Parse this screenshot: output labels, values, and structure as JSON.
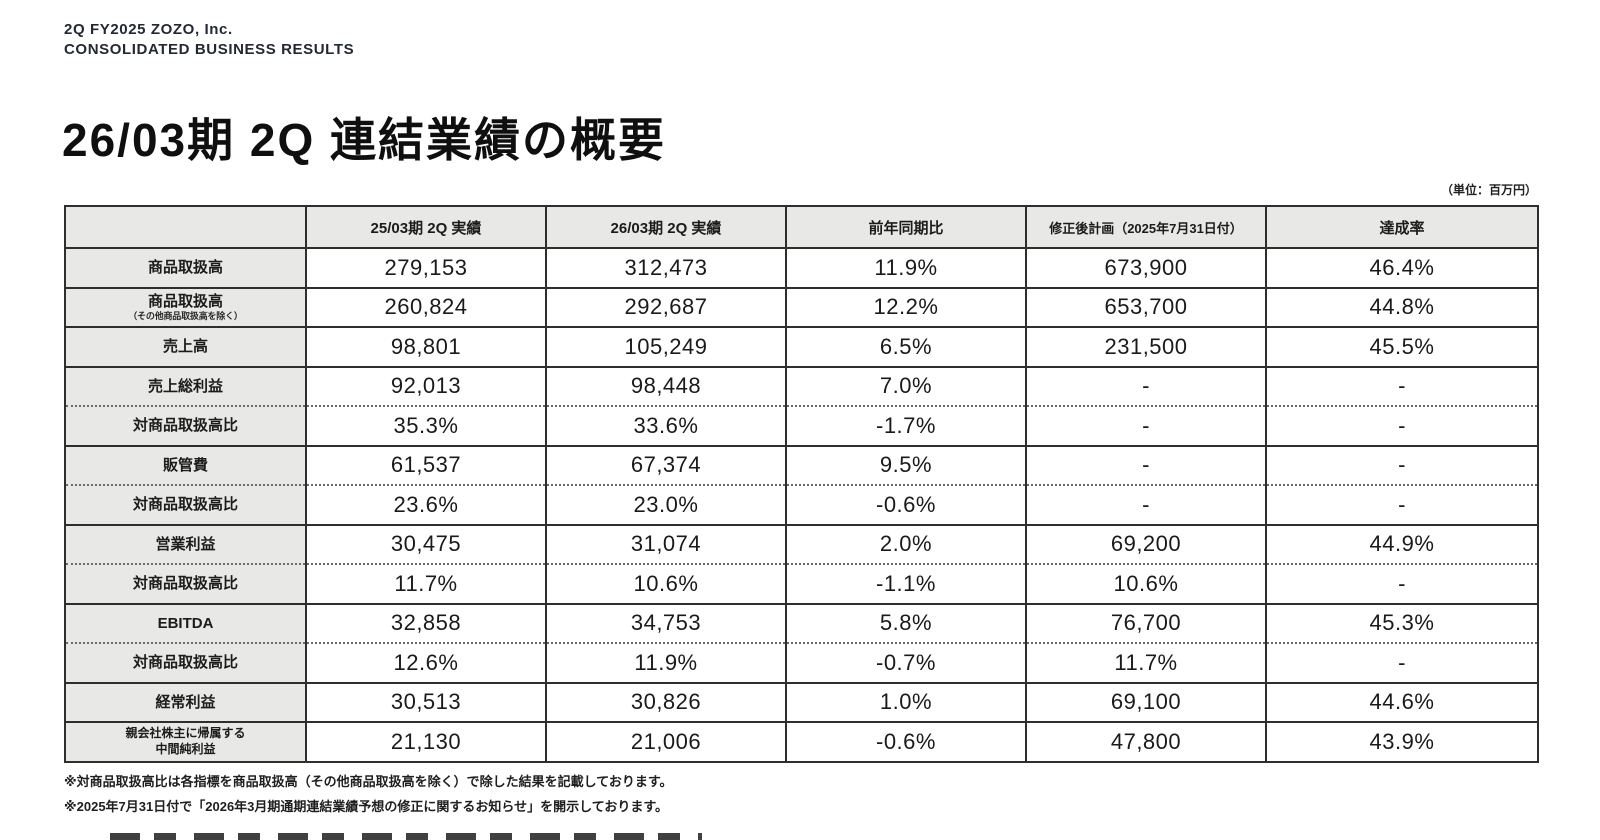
{
  "header": {
    "line1": "2Q FY2025 ZOZO, Inc.",
    "line2": "CONSOLIDATED BUSINESS RESULTS"
  },
  "title": "26/03期 2Q 連結業績の概要",
  "unit_note": "（単位：百万円）",
  "table": {
    "columns": [
      "",
      "25/03期 2Q 実績",
      "26/03期 2Q 実績",
      "前年同期比",
      "修正後計画（2025年7月31日付）",
      "達成率"
    ],
    "rows": [
      {
        "label": "商品取扱高",
        "divider": "solid",
        "values": [
          "279,153",
          "312,473",
          "11.9%",
          "673,900",
          "46.4%"
        ]
      },
      {
        "label": "商品取扱高",
        "sub": "（その他商品取扱高を除く）",
        "divider": "solid",
        "values": [
          "260,824",
          "292,687",
          "12.2%",
          "653,700",
          "44.8%"
        ]
      },
      {
        "label": "売上高",
        "divider": "solid",
        "values": [
          "98,801",
          "105,249",
          "6.5%",
          "231,500",
          "45.5%"
        ]
      },
      {
        "label": "売上総利益",
        "divider": "solid",
        "values": [
          "92,013",
          "98,448",
          "7.0%",
          "-",
          "-"
        ]
      },
      {
        "label": "対商品取扱高比",
        "divider": "dashed",
        "values": [
          "35.3%",
          "33.6%",
          "-1.7%",
          "-",
          "-"
        ]
      },
      {
        "label": "販管費",
        "divider": "solid",
        "values": [
          "61,537",
          "67,374",
          "9.5%",
          "-",
          "-"
        ]
      },
      {
        "label": "対商品取扱高比",
        "divider": "dashed",
        "values": [
          "23.6%",
          "23.0%",
          "-0.6%",
          "-",
          "-"
        ]
      },
      {
        "label": "営業利益",
        "divider": "solid",
        "values": [
          "30,475",
          "31,074",
          "2.0%",
          "69,200",
          "44.9%"
        ]
      },
      {
        "label": "対商品取扱高比",
        "divider": "dashed",
        "values": [
          "11.7%",
          "10.6%",
          "-1.1%",
          "10.6%",
          "-"
        ]
      },
      {
        "label": "EBITDA",
        "divider": "solid",
        "values": [
          "32,858",
          "34,753",
          "5.8%",
          "76,700",
          "45.3%"
        ]
      },
      {
        "label": "対商品取扱高比",
        "divider": "dashed",
        "values": [
          "12.6%",
          "11.9%",
          "-0.7%",
          "11.7%",
          "-"
        ]
      },
      {
        "label": "経常利益",
        "divider": "solid",
        "values": [
          "30,513",
          "30,826",
          "1.0%",
          "69,100",
          "44.6%"
        ]
      },
      {
        "label": "親会社株主に帰属する",
        "label2": "中間純利益",
        "small": true,
        "divider": "solid",
        "values": [
          "21,130",
          "21,006",
          "-0.6%",
          "47,800",
          "43.9%"
        ]
      }
    ]
  },
  "footnotes": [
    "※対商品取扱高比は各指標を商品取扱高（その他商品取扱高を除く）で除した結果を記載しております。",
    "※2025年7月31日付で「2026年3月期通期連結業績予想の修正に関するお知らせ」を開示しております。"
  ]
}
